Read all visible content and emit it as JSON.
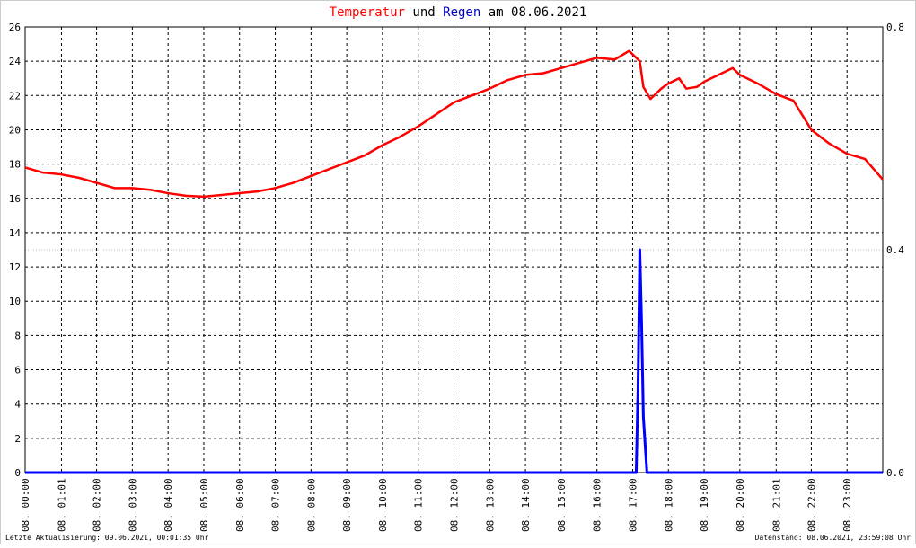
{
  "chart_data": {
    "type": "line",
    "title_parts": [
      {
        "text": "Temperatur",
        "color": "#ff0000"
      },
      {
        "text": "und",
        "color": "#000000"
      },
      {
        "text": "Regen",
        "color": "#0000cc"
      },
      {
        "text": "am 08.06.2021",
        "color": "#000000"
      }
    ],
    "footer_left": "Letzte Aktualisierung: 09.06.2021, 00:01:35 Uhr",
    "footer_right": "Datenstand: 08.06.2021, 23:59:08 Uhr",
    "xlim": [
      0,
      24
    ],
    "xticks": [
      {
        "value": 0,
        "label": "08. 00:00"
      },
      {
        "value": 1.0167,
        "label": "08. 01:01"
      },
      {
        "value": 2,
        "label": "08. 02:00"
      },
      {
        "value": 3,
        "label": "08. 03:00"
      },
      {
        "value": 4,
        "label": "08. 04:00"
      },
      {
        "value": 5,
        "label": "08. 05:00"
      },
      {
        "value": 6,
        "label": "08. 06:00"
      },
      {
        "value": 7,
        "label": "08. 07:00"
      },
      {
        "value": 8,
        "label": "08. 08:00"
      },
      {
        "value": 9,
        "label": "08. 09:00"
      },
      {
        "value": 10,
        "label": "08. 10:00"
      },
      {
        "value": 11,
        "label": "08. 11:00"
      },
      {
        "value": 12,
        "label": "08. 12:00"
      },
      {
        "value": 13,
        "label": "08. 13:00"
      },
      {
        "value": 14,
        "label": "08. 14:00"
      },
      {
        "value": 15,
        "label": "08. 15:00"
      },
      {
        "value": 16,
        "label": "08. 16:00"
      },
      {
        "value": 17,
        "label": "08. 17:00"
      },
      {
        "value": 18,
        "label": "08. 18:00"
      },
      {
        "value": 19,
        "label": "08. 19:00"
      },
      {
        "value": 20,
        "label": "08. 20:00"
      },
      {
        "value": 21.0167,
        "label": "08. 21:01"
      },
      {
        "value": 22,
        "label": "08. 22:00"
      },
      {
        "value": 23,
        "label": "08. 23:00"
      }
    ],
    "ylim": [
      0,
      26
    ],
    "yticks": [
      0,
      2,
      4,
      6,
      8,
      10,
      12,
      14,
      16,
      18,
      20,
      22,
      24,
      26
    ],
    "y2lim": [
      0,
      0.8
    ],
    "y2ticks": [
      {
        "value": 0,
        "label": "0.0"
      },
      0.4,
      0.8
    ],
    "grid": true,
    "series": [
      {
        "name": "Temperatur",
        "color": "#ff0000",
        "axis": "y",
        "x": [
          0,
          0.5,
          1,
          1.5,
          2,
          2.5,
          3,
          3.5,
          4,
          4.5,
          5,
          5.5,
          6,
          6.5,
          7,
          7.5,
          8,
          8.5,
          9,
          9.5,
          10,
          10.5,
          11,
          11.5,
          12,
          12.5,
          13,
          13.5,
          14,
          14.5,
          15,
          15.5,
          16,
          16.5,
          16.9,
          17.2,
          17.3,
          17.5,
          17.8,
          18,
          18.3,
          18.5,
          18.8,
          19,
          19.5,
          19.8,
          20,
          20.5,
          21,
          21.5,
          22,
          22.5,
          23,
          23.5,
          24
        ],
        "values": [
          17.8,
          17.5,
          17.4,
          17.2,
          16.9,
          16.6,
          16.6,
          16.5,
          16.3,
          16.15,
          16.1,
          16.2,
          16.3,
          16.4,
          16.6,
          16.9,
          17.3,
          17.7,
          18.1,
          18.5,
          19.1,
          19.6,
          20.2,
          20.9,
          21.6,
          22.0,
          22.4,
          22.9,
          23.2,
          23.3,
          23.6,
          23.9,
          24.2,
          24.1,
          24.6,
          24.0,
          22.5,
          21.8,
          22.4,
          22.7,
          23.0,
          22.4,
          22.5,
          22.8,
          23.3,
          23.6,
          23.2,
          22.7,
          22.1,
          21.7,
          20.0,
          19.2,
          18.6,
          18.3,
          17.1
        ]
      },
      {
        "name": "Regen",
        "color": "#0000ff",
        "axis": "y2",
        "x": [
          0,
          17.1,
          17.15,
          17.2,
          17.25,
          17.3,
          17.35,
          17.4,
          24
        ],
        "values": [
          0,
          0,
          0.15,
          0.4,
          0.27,
          0.1,
          0.05,
          0,
          0
        ]
      }
    ]
  }
}
